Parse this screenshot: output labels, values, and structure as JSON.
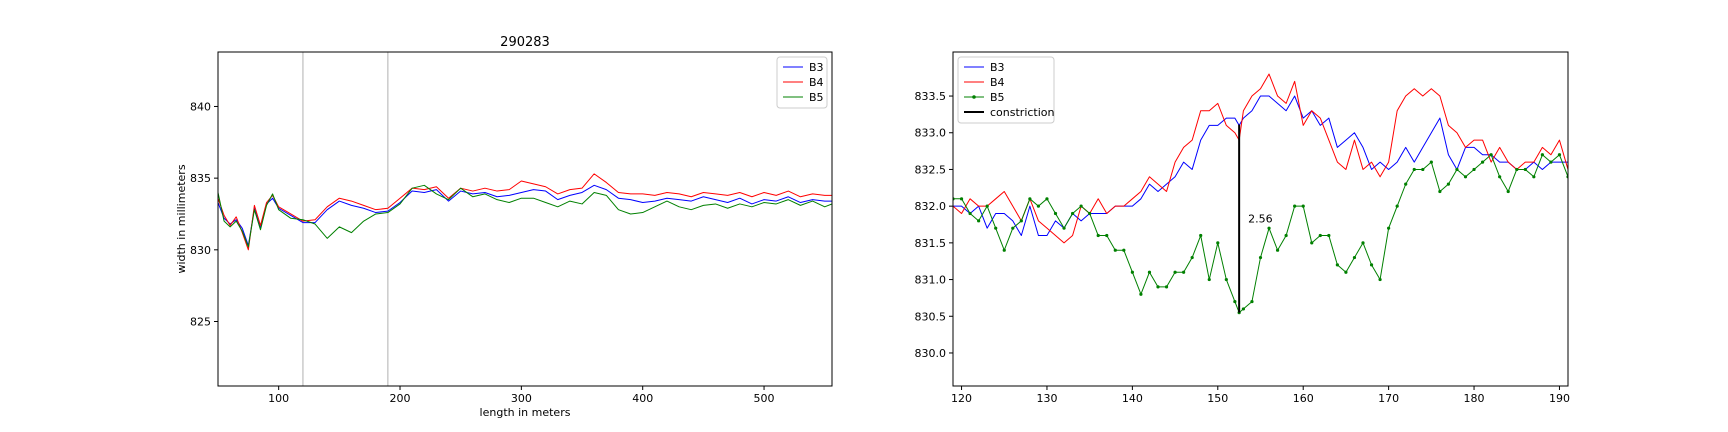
{
  "chart_data": [
    {
      "type": "line",
      "title": "290283",
      "xlabel": "length in meters",
      "ylabel": "width in millimeters",
      "xlim": [
        50,
        556
      ],
      "ylim": [
        820.5,
        843.8
      ],
      "xticks": [
        100,
        200,
        300,
        400,
        500
      ],
      "yticks": [
        825,
        830,
        835,
        840
      ],
      "grid": false,
      "legend_position": "top-right",
      "vlines": [
        120,
        190
      ],
      "series": [
        {
          "name": "B3",
          "color": "#0000ff",
          "x": [
            50,
            55,
            60,
            65,
            70,
            75,
            80,
            85,
            90,
            95,
            100,
            110,
            120,
            130,
            140,
            150,
            160,
            170,
            180,
            190,
            200,
            210,
            220,
            230,
            240,
            250,
            260,
            270,
            280,
            290,
            300,
            310,
            320,
            330,
            340,
            350,
            360,
            370,
            380,
            390,
            400,
            410,
            420,
            430,
            440,
            450,
            460,
            470,
            480,
            490,
            500,
            510,
            520,
            530,
            540,
            550,
            556
          ],
          "y": [
            833.3,
            832.2,
            831.8,
            832.1,
            831.5,
            830.3,
            832.9,
            831.5,
            833.2,
            833.6,
            832.9,
            832.4,
            831.9,
            831.9,
            832.8,
            833.4,
            833.1,
            832.9,
            832.6,
            832.7,
            833.3,
            834.1,
            834.0,
            834.2,
            833.4,
            834.1,
            833.9,
            834.0,
            833.7,
            833.8,
            834.0,
            834.2,
            834.1,
            833.5,
            833.8,
            834.0,
            834.5,
            834.2,
            833.6,
            833.5,
            833.3,
            833.4,
            833.6,
            833.5,
            833.4,
            833.7,
            833.5,
            833.3,
            833.6,
            833.2,
            833.5,
            833.4,
            833.7,
            833.3,
            833.5,
            833.4,
            833.4
          ]
        },
        {
          "name": "B4",
          "color": "#ff0000",
          "x": [
            50,
            55,
            60,
            65,
            70,
            75,
            80,
            85,
            90,
            95,
            100,
            110,
            120,
            130,
            140,
            150,
            160,
            170,
            180,
            190,
            200,
            210,
            220,
            230,
            240,
            250,
            260,
            270,
            280,
            290,
            300,
            310,
            320,
            330,
            340,
            350,
            360,
            370,
            380,
            390,
            400,
            410,
            420,
            430,
            440,
            450,
            460,
            470,
            480,
            490,
            500,
            510,
            520,
            530,
            540,
            550,
            556
          ],
          "y": [
            833.6,
            832.4,
            831.7,
            832.3,
            831.2,
            830.0,
            833.1,
            831.7,
            833.3,
            833.8,
            833.0,
            832.5,
            832.0,
            832.1,
            833.0,
            833.6,
            833.4,
            833.1,
            832.8,
            832.9,
            833.6,
            834.3,
            834.2,
            834.4,
            833.6,
            834.3,
            834.1,
            834.3,
            834.1,
            834.2,
            834.8,
            834.6,
            834.4,
            833.9,
            834.2,
            834.3,
            835.3,
            834.7,
            834.0,
            833.9,
            833.9,
            833.8,
            834.0,
            833.9,
            833.7,
            834.0,
            833.9,
            833.8,
            834.0,
            833.7,
            834.0,
            833.8,
            834.1,
            833.7,
            833.9,
            833.8,
            833.8
          ]
        },
        {
          "name": "B5",
          "color": "#008000",
          "x": [
            50,
            55,
            60,
            65,
            70,
            75,
            80,
            85,
            90,
            95,
            100,
            110,
            120,
            130,
            140,
            150,
            160,
            170,
            180,
            190,
            200,
            210,
            220,
            230,
            240,
            250,
            260,
            270,
            280,
            290,
            300,
            310,
            320,
            330,
            340,
            350,
            360,
            370,
            380,
            390,
            400,
            410,
            420,
            430,
            440,
            450,
            460,
            470,
            480,
            490,
            500,
            510,
            520,
            530,
            540,
            550,
            556
          ],
          "y": [
            834.0,
            832.0,
            831.6,
            832.0,
            831.3,
            830.2,
            832.8,
            831.4,
            833.1,
            833.9,
            832.8,
            832.2,
            832.1,
            831.8,
            830.8,
            831.6,
            831.2,
            832.0,
            832.5,
            832.6,
            833.2,
            834.3,
            834.5,
            833.9,
            833.5,
            834.3,
            833.7,
            833.9,
            833.5,
            833.3,
            833.6,
            833.6,
            833.3,
            833.0,
            833.4,
            833.2,
            834.0,
            833.8,
            832.8,
            832.5,
            832.6,
            833.0,
            833.4,
            833.0,
            832.8,
            833.1,
            833.2,
            832.9,
            833.2,
            833.0,
            833.3,
            833.2,
            833.5,
            833.1,
            833.4,
            833.0,
            833.2
          ]
        }
      ]
    },
    {
      "type": "line",
      "xlabel": "",
      "ylabel": "",
      "xlim": [
        119,
        191
      ],
      "ylim": [
        829.55,
        834.1
      ],
      "xticks": [
        120,
        130,
        140,
        150,
        160,
        170,
        180,
        190
      ],
      "yticks": [
        830.0,
        830.5,
        831.0,
        831.5,
        832.0,
        832.5,
        833.0,
        833.5
      ],
      "grid": false,
      "legend_position": "top-left",
      "series": [
        {
          "name": "B3",
          "color": "#0000ff",
          "x": [
            119,
            120,
            121,
            122,
            123,
            124,
            125,
            126,
            127,
            128,
            129,
            130,
            131,
            132,
            133,
            134,
            135,
            136,
            137,
            138,
            139,
            140,
            141,
            142,
            143,
            144,
            145,
            146,
            147,
            148,
            149,
            150,
            151,
            152,
            152.5,
            153,
            154,
            155,
            156,
            157,
            158,
            159,
            160,
            161,
            162,
            163,
            164,
            165,
            166,
            167,
            168,
            169,
            170,
            171,
            172,
            173,
            174,
            175,
            176,
            177,
            178,
            179,
            180,
            181,
            182,
            183,
            184,
            185,
            186,
            187,
            188,
            189,
            190,
            191
          ],
          "y": [
            832.0,
            832.0,
            831.9,
            832.0,
            831.7,
            831.9,
            831.9,
            831.8,
            831.6,
            832.0,
            831.6,
            831.6,
            831.8,
            831.7,
            831.9,
            831.8,
            831.9,
            831.9,
            831.9,
            832.0,
            832.0,
            832.0,
            832.1,
            832.3,
            832.2,
            832.3,
            832.4,
            832.6,
            832.5,
            832.9,
            833.1,
            833.1,
            833.2,
            833.2,
            833.1,
            833.2,
            833.3,
            833.5,
            833.5,
            833.4,
            833.3,
            833.5,
            833.2,
            833.3,
            833.1,
            833.2,
            832.8,
            832.9,
            833.0,
            832.8,
            832.5,
            832.6,
            832.5,
            832.6,
            832.8,
            832.6,
            832.8,
            833.0,
            833.2,
            832.7,
            832.5,
            832.8,
            832.8,
            832.7,
            832.7,
            832.6,
            832.6,
            832.5,
            832.5,
            832.6,
            832.5,
            832.6,
            832.6,
            832.6
          ]
        },
        {
          "name": "B4",
          "color": "#ff0000",
          "x": [
            119,
            120,
            121,
            122,
            123,
            124,
            125,
            126,
            127,
            128,
            129,
            130,
            131,
            132,
            133,
            134,
            135,
            136,
            137,
            138,
            139,
            140,
            141,
            142,
            143,
            144,
            145,
            146,
            147,
            148,
            149,
            150,
            151,
            152,
            152.5,
            153,
            154,
            155,
            156,
            157,
            158,
            159,
            160,
            161,
            162,
            163,
            164,
            165,
            166,
            167,
            168,
            169,
            170,
            171,
            172,
            173,
            174,
            175,
            176,
            177,
            178,
            179,
            180,
            181,
            182,
            183,
            184,
            185,
            186,
            187,
            188,
            189,
            190,
            191
          ],
          "y": [
            832.0,
            831.9,
            832.1,
            832.0,
            832.0,
            832.1,
            832.2,
            832.0,
            831.8,
            832.1,
            831.8,
            831.7,
            831.6,
            831.5,
            831.6,
            832.0,
            831.9,
            832.1,
            831.9,
            832.0,
            832.0,
            832.1,
            832.2,
            832.4,
            832.3,
            832.2,
            832.6,
            832.8,
            832.9,
            833.3,
            833.3,
            833.4,
            833.1,
            833.0,
            832.9,
            833.3,
            833.5,
            833.6,
            833.8,
            833.5,
            833.4,
            833.7,
            833.1,
            833.3,
            833.2,
            832.9,
            832.6,
            832.5,
            832.9,
            832.5,
            832.6,
            832.4,
            832.6,
            833.3,
            833.5,
            833.6,
            833.5,
            833.6,
            833.5,
            833.1,
            833.0,
            832.8,
            832.9,
            832.9,
            832.6,
            832.8,
            832.6,
            832.5,
            832.6,
            832.6,
            832.8,
            832.7,
            832.9,
            832.5
          ]
        },
        {
          "name": "B5",
          "color": "#008000",
          "x": [
            119,
            120,
            121,
            122,
            123,
            124,
            125,
            126,
            127,
            128,
            129,
            130,
            131,
            132,
            133,
            134,
            135,
            136,
            137,
            138,
            139,
            140,
            141,
            142,
            143,
            144,
            145,
            146,
            147,
            148,
            149,
            150,
            151,
            152,
            152.5,
            153,
            154,
            155,
            156,
            157,
            158,
            159,
            160,
            161,
            162,
            163,
            164,
            165,
            166,
            167,
            168,
            169,
            170,
            171,
            172,
            173,
            174,
            175,
            176,
            177,
            178,
            179,
            180,
            181,
            182,
            183,
            184,
            185,
            186,
            187,
            188,
            189,
            190,
            191
          ],
          "y": [
            832.1,
            832.1,
            831.9,
            831.8,
            832.0,
            831.7,
            831.4,
            831.7,
            831.8,
            832.1,
            832.0,
            832.1,
            831.9,
            831.7,
            831.9,
            832.0,
            831.9,
            831.6,
            831.6,
            831.4,
            831.4,
            831.1,
            830.8,
            831.1,
            830.9,
            830.9,
            831.1,
            831.1,
            831.3,
            831.6,
            831.0,
            831.5,
            831.0,
            830.7,
            830.55,
            830.6,
            830.7,
            831.3,
            831.7,
            831.4,
            831.6,
            832.0,
            832.0,
            831.5,
            831.6,
            831.6,
            831.2,
            831.1,
            831.3,
            831.5,
            831.2,
            831.0,
            831.7,
            832.0,
            832.3,
            832.5,
            832.5,
            832.6,
            832.2,
            832.3,
            832.5,
            832.4,
            832.5,
            832.6,
            832.7,
            832.4,
            832.2,
            832.5,
            832.5,
            832.4,
            832.7,
            832.6,
            832.7,
            832.4
          ]
        }
      ],
      "constriction": {
        "name": "constriction",
        "x": 152.5,
        "y_top": 833.11,
        "y_bottom": 830.55,
        "label": "2.56"
      }
    }
  ]
}
